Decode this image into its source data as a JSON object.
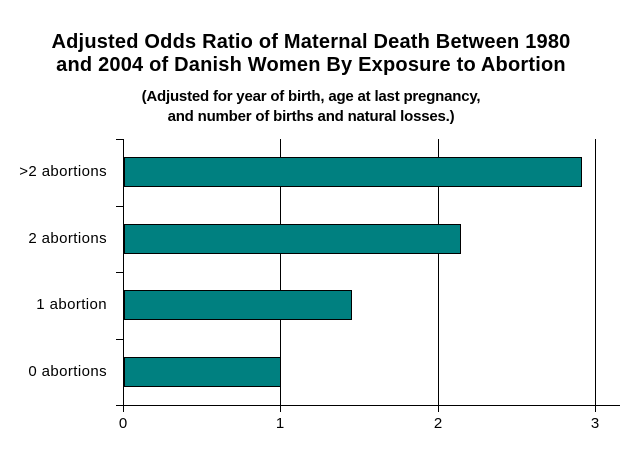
{
  "title": {
    "line1": "Adjusted Odds Ratio of Maternal Death Between 1980",
    "line2": "and 2004 of Danish Women By Exposure to Abortion"
  },
  "subtitle": {
    "line1": "(Adjusted for year of birth, age at last pregnancy,",
    "line2": "and number of births and natural losses.)"
  },
  "colors": {
    "bar_fill": "#008080",
    "bar_border": "#000000",
    "axis": "#000000",
    "gridline": "#000000",
    "background": "#ffffff",
    "text": "#000000"
  },
  "chart_data": {
    "type": "bar",
    "orientation": "horizontal",
    "title": "Adjusted Odds Ratio of Maternal Death Between 1980 and 2004 of Danish Women By Exposure to Abortion",
    "subtitle": "(Adjusted for year of birth, age at last pregnancy, and number of births and natural losses.)",
    "categories": [
      ">2 abortions",
      "2 abortions",
      "1 abortion",
      "0 abortions"
    ],
    "values": [
      2.91,
      2.14,
      1.45,
      1.0
    ],
    "xlabel": "",
    "ylabel": "",
    "xlim": [
      0,
      3.15
    ],
    "x_ticks": [
      0,
      1,
      2,
      3
    ],
    "gridlines": "vertical-at-x-ticks",
    "legend": "none",
    "bar_color": "#008080"
  }
}
